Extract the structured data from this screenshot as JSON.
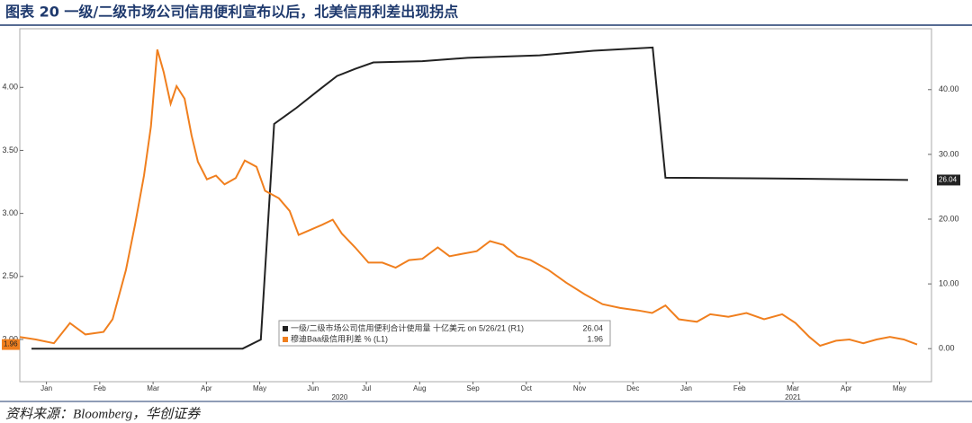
{
  "chart_data": {
    "type": "line",
    "title": "图表 20  一级/二级市场公司信用便利宣布以后，北美信用利差出现拐点",
    "source": "资料来源：Bloomberg，华创证券",
    "xlim": [
      0,
      17.1
    ],
    "xticks": [
      {
        "value": 0.5,
        "label": "Jan"
      },
      {
        "value": 1.5,
        "label": "Feb"
      },
      {
        "value": 2.5,
        "label": "Mar"
      },
      {
        "value": 3.5,
        "label": "Apr"
      },
      {
        "value": 4.5,
        "label": "May"
      },
      {
        "value": 5.5,
        "label": "Jun"
      },
      {
        "value": 6.5,
        "label": "Jul"
      },
      {
        "value": 7.5,
        "label": "Aug"
      },
      {
        "value": 8.5,
        "label": "Sep"
      },
      {
        "value": 9.5,
        "label": "Oct"
      },
      {
        "value": 10.5,
        "label": "Nov"
      },
      {
        "value": 11.5,
        "label": "Dec"
      },
      {
        "value": 12.5,
        "label": "Jan"
      },
      {
        "value": 13.5,
        "label": "Feb"
      },
      {
        "value": 14.5,
        "label": "Mar"
      },
      {
        "value": 15.5,
        "label": "Apr"
      },
      {
        "value": 16.5,
        "label": "May"
      }
    ],
    "year_labels": [
      {
        "value": 6,
        "label": "2020"
      },
      {
        "value": 14.5,
        "label": "2021"
      }
    ],
    "ylim": [
      1.665,
      4.465
    ],
    "yticks": [
      {
        "value": 2.0,
        "label": "2.00"
      },
      {
        "value": 2.5,
        "label": "2.50"
      },
      {
        "value": 3.0,
        "label": "3.00"
      },
      {
        "value": 3.5,
        "label": "3.50"
      },
      {
        "value": 4.0,
        "label": "4.00"
      }
    ],
    "y2lim": [
      -5.1,
      49.4
    ],
    "y2ticks": [
      {
        "value": 0,
        "label": "0.00"
      },
      {
        "value": 10,
        "label": "10.00"
      },
      {
        "value": 20,
        "label": "20.00"
      },
      {
        "value": 30,
        "label": "30.00"
      },
      {
        "value": 40,
        "label": "40.00"
      }
    ],
    "series": [
      {
        "name": "一级/二级市场公司信用便利合计使用量 十亿美元 on 5/26/21 (R1)",
        "color": "#222222",
        "axis": "y2",
        "last_label": "26.04",
        "x": [
          0.22,
          4.18,
          4.52,
          4.77,
          5.19,
          5.62,
          5.95,
          6.29,
          6.63,
          7.55,
          8.4,
          9.75,
          10.76,
          11.87,
          12.11,
          13.96,
          16.66
        ],
        "values": [
          0,
          0,
          1.4,
          34.7,
          37.2,
          40.0,
          42.1,
          43.2,
          44.2,
          44.4,
          44.9,
          45.3,
          46.0,
          46.5,
          26.4,
          26.3,
          26.04
        ]
      },
      {
        "name": "穆迪Baa级信用利差 % (L1)",
        "color": "#f07f1e",
        "axis": "y",
        "last_label": "1.96",
        "x": [
          0,
          0.3,
          0.64,
          0.94,
          1.23,
          1.57,
          1.74,
          1.99,
          2.16,
          2.33,
          2.46,
          2.58,
          2.7,
          2.83,
          2.94,
          3.09,
          3.22,
          3.34,
          3.51,
          3.68,
          3.84,
          4.05,
          4.22,
          4.44,
          4.6,
          4.86,
          5.06,
          5.23,
          5.45,
          5.67,
          5.87,
          6.04,
          6.29,
          6.54,
          6.8,
          7.05,
          7.3,
          7.55,
          7.84,
          8.06,
          8.31,
          8.57,
          8.82,
          9.07,
          9.33,
          9.58,
          9.92,
          10.25,
          10.59,
          10.93,
          11.26,
          11.6,
          11.86,
          12.11,
          12.36,
          12.7,
          12.95,
          13.29,
          13.63,
          13.96,
          14.3,
          14.55,
          14.81,
          15.01,
          15.31,
          15.56,
          15.82,
          16.07,
          16.32,
          16.58,
          16.83
        ],
        "values": [
          2.02,
          2.0,
          1.97,
          2.13,
          2.04,
          2.06,
          2.16,
          2.55,
          2.91,
          3.3,
          3.69,
          4.3,
          4.12,
          3.87,
          4.01,
          3.91,
          3.62,
          3.41,
          3.27,
          3.3,
          3.23,
          3.28,
          3.42,
          3.37,
          3.18,
          3.12,
          3.02,
          2.83,
          2.87,
          2.91,
          2.95,
          2.84,
          2.73,
          2.61,
          2.61,
          2.57,
          2.63,
          2.64,
          2.73,
          2.66,
          2.68,
          2.7,
          2.78,
          2.75,
          2.66,
          2.63,
          2.55,
          2.45,
          2.36,
          2.28,
          2.25,
          2.23,
          2.21,
          2.27,
          2.16,
          2.14,
          2.2,
          2.18,
          2.21,
          2.16,
          2.2,
          2.13,
          2.02,
          1.95,
          1.99,
          2.0,
          1.97,
          2.0,
          2.02,
          2.0,
          1.96
        ]
      }
    ]
  }
}
